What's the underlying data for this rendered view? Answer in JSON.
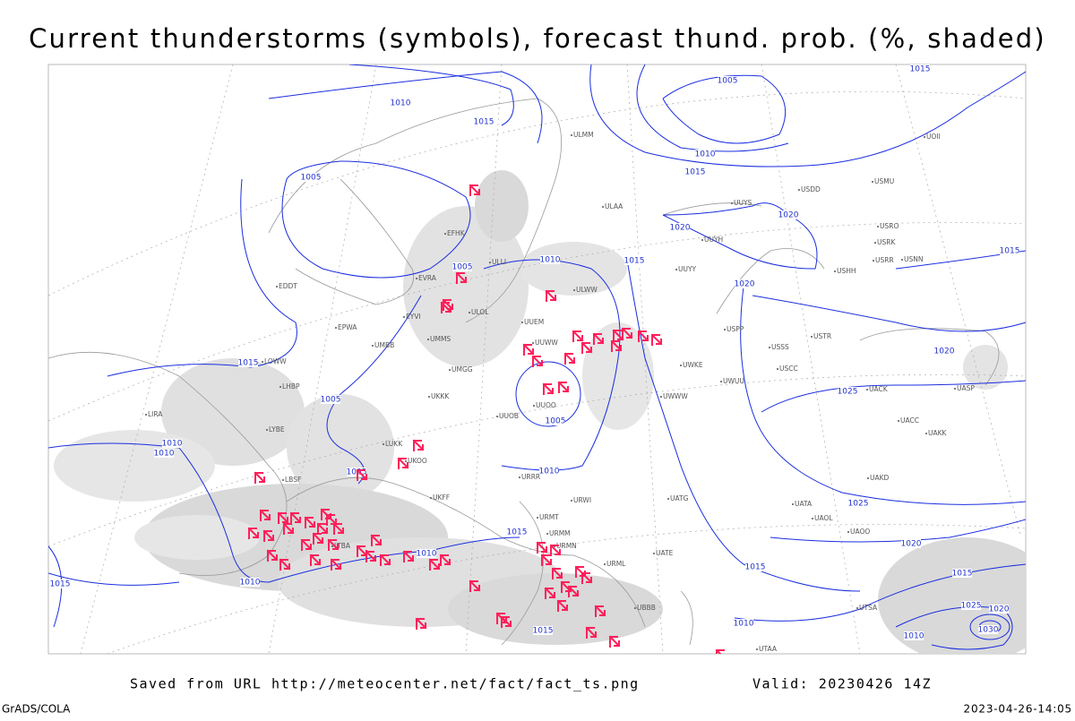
{
  "title": "Current thunderstorms (symbols), forecast thund. prob. (%, shaded)",
  "footer": {
    "source": "Saved from URL http://meteocenter.net/fact/fact_ts.png",
    "valid": "Valid: 20230426 14Z",
    "software": "GrADS/COLA",
    "timestamp": "2023-04-26-14:05"
  },
  "isobar_labels": [
    1010,
    1015,
    1005,
    1005,
    1010,
    1015,
    1015,
    1005,
    1005,
    1010,
    1010,
    1005,
    1010,
    1015,
    1010,
    1010,
    1015,
    1015,
    1005,
    1010,
    1015,
    1020,
    1020,
    1020,
    1015,
    1020,
    1025,
    1025,
    1020,
    1015,
    1015,
    1025,
    1020,
    1010,
    1015,
    1010,
    1030
  ],
  "station_labels": [
    "ULAA",
    "ULLI",
    "ULOL",
    "ULWW",
    "UUEM",
    "UUWW",
    "UUOO",
    "UUOB",
    "UKKK",
    "UMMS",
    "UMGG",
    "UMBB",
    "EPWA",
    "EDDT",
    "LHBP",
    "LYBE",
    "LBSF",
    "LTBA",
    "LUKK",
    "UKOO",
    "UKFF",
    "URRR",
    "URWI",
    "URMT",
    "URMM",
    "URMN",
    "URML",
    "UBBB",
    "UATE",
    "UATG",
    "UWWW",
    "UWKE",
    "UWUU",
    "USSS",
    "USCC",
    "USPP",
    "USTR",
    "UACK",
    "UASP",
    "UACC",
    "UAKK",
    "UAKD",
    "UATA",
    "UAOL",
    "UAOO",
    "UTAA",
    "UTSA",
    "USHH",
    "USRR",
    "USNN",
    "USRK",
    "USRO",
    "USMU",
    "UUYY",
    "UUYH",
    "UUYS",
    "USDD",
    "UOII",
    "ULMM",
    "EFHK",
    "EVRA",
    "EYVI",
    "LOWW",
    "LIRA"
  ]
}
